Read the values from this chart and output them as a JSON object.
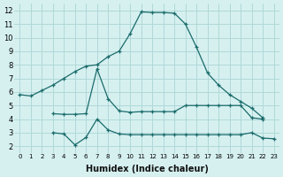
{
  "xlabel": "Humidex (Indice chaleur)",
  "background_color": "#d6f0f0",
  "grid_color": "#b0d8d8",
  "line_color": "#1a6b6b",
  "ylim": [
    1.5,
    12.5
  ],
  "xlim": [
    -0.5,
    23.5
  ],
  "yticks": [
    2,
    3,
    4,
    5,
    6,
    7,
    8,
    9,
    10,
    11,
    12
  ],
  "xticks": [
    0,
    1,
    2,
    3,
    4,
    5,
    6,
    7,
    8,
    9,
    10,
    11,
    12,
    13,
    14,
    15,
    16,
    17,
    18,
    19,
    20,
    21,
    22,
    23
  ],
  "series": [
    {
      "x": [
        0,
        1,
        2,
        3,
        4,
        5,
        6,
        7,
        8,
        9,
        10,
        11,
        12,
        13,
        14,
        15,
        16,
        17,
        18,
        19,
        20,
        21,
        22,
        23
      ],
      "y": [
        5.8,
        5.7,
        6.1,
        6.5,
        7.0,
        7.5,
        7.9,
        8.0,
        8.6,
        9.0,
        10.3,
        11.9,
        11.85,
        11.85,
        11.8,
        11.0,
        9.3,
        7.4,
        6.5,
        5.8,
        5.3,
        4.8,
        4.1,
        null
      ]
    },
    {
      "x": [
        2,
        3,
        4,
        5,
        6,
        7,
        8,
        9,
        10,
        11,
        12,
        13,
        14,
        15,
        16,
        17,
        18,
        19,
        20,
        21,
        22,
        23
      ],
      "y": [
        null,
        4.4,
        4.35,
        4.35,
        4.4,
        7.7,
        5.5,
        4.6,
        4.5,
        4.55,
        4.55,
        4.55,
        4.55,
        5.0,
        5.0,
        5.0,
        5.0,
        5.0,
        5.0,
        4.1,
        4.0,
        null
      ]
    },
    {
      "x": [
        2,
        3,
        4,
        5,
        6,
        7,
        8,
        9,
        10,
        11,
        12,
        13,
        14,
        15,
        16,
        17,
        18,
        19,
        20,
        21,
        22,
        23
      ],
      "y": [
        null,
        3.0,
        2.9,
        2.1,
        2.65,
        4.0,
        3.2,
        2.9,
        2.85,
        2.85,
        2.85,
        2.85,
        2.85,
        2.85,
        2.85,
        2.85,
        2.85,
        2.85,
        2.85,
        3.0,
        2.6,
        2.55
      ]
    }
  ]
}
